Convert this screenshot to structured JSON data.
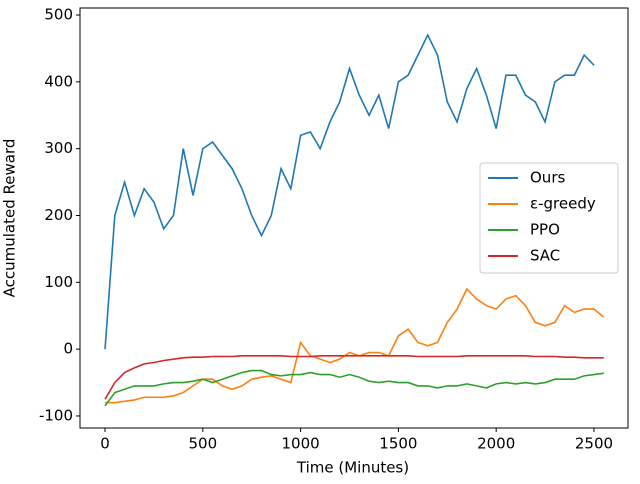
{
  "chart_data": {
    "type": "line",
    "xlabel": "Time (Minutes)",
    "ylabel": "Accumulated Reward",
    "x": [
      0,
      50,
      100,
      150,
      200,
      250,
      300,
      350,
      400,
      450,
      500,
      550,
      600,
      650,
      700,
      750,
      800,
      850,
      900,
      950,
      1000,
      1050,
      1100,
      1150,
      1200,
      1250,
      1300,
      1350,
      1400,
      1450,
      1500,
      1550,
      1600,
      1650,
      1700,
      1750,
      1800,
      1850,
      1900,
      1950,
      2000,
      2050,
      2100,
      2150,
      2200,
      2250,
      2300,
      2350,
      2400,
      2450,
      2500,
      2550
    ],
    "series": [
      {
        "name": "Ours",
        "color": "#1f77b4",
        "values": [
          0,
          200,
          250,
          200,
          240,
          220,
          180,
          200,
          300,
          230,
          300,
          310,
          290,
          270,
          240,
          200,
          170,
          200,
          270,
          240,
          320,
          325,
          300,
          340,
          370,
          420,
          380,
          350,
          380,
          330,
          400,
          410,
          440,
          470,
          440,
          370,
          340,
          390,
          420,
          380,
          330,
          410,
          410,
          380,
          370,
          340,
          400,
          410,
          410,
          440,
          425,
          null
        ]
      },
      {
        "name": "ε-greedy",
        "color": "#ff7f0e",
        "values": [
          -80,
          -80,
          -78,
          -76,
          -72,
          -72,
          -72,
          -70,
          -65,
          -55,
          -45,
          -45,
          -55,
          -60,
          -55,
          -45,
          -42,
          -40,
          -45,
          -50,
          10,
          -10,
          -15,
          -20,
          -15,
          -5,
          -10,
          -5,
          -5,
          -10,
          20,
          30,
          10,
          5,
          10,
          40,
          60,
          90,
          75,
          65,
          60,
          75,
          80,
          65,
          40,
          35,
          40,
          65,
          55,
          60,
          60,
          48
        ]
      },
      {
        "name": "PPO",
        "color": "#2ca02c",
        "values": [
          -85,
          -65,
          -60,
          -55,
          -55,
          -55,
          -52,
          -50,
          -50,
          -48,
          -45,
          -50,
          -45,
          -40,
          -35,
          -32,
          -32,
          -38,
          -40,
          -38,
          -38,
          -35,
          -38,
          -38,
          -42,
          -38,
          -42,
          -48,
          -50,
          -48,
          -50,
          -50,
          -55,
          -55,
          -58,
          -55,
          -55,
          -52,
          -55,
          -58,
          -52,
          -50,
          -52,
          -50,
          -52,
          -50,
          -45,
          -45,
          -45,
          -40,
          -38,
          -36
        ]
      },
      {
        "name": "SAC",
        "color": "#d62728",
        "values": [
          -75,
          -50,
          -35,
          -28,
          -22,
          -20,
          -17,
          -15,
          -13,
          -12,
          -12,
          -11,
          -11,
          -11,
          -10,
          -10,
          -10,
          -10,
          -10,
          -11,
          -11,
          -11,
          -10,
          -10,
          -10,
          -10,
          -10,
          -10,
          -10,
          -10,
          -10,
          -10,
          -11,
          -11,
          -11,
          -11,
          -11,
          -10,
          -10,
          -10,
          -10,
          -10,
          -10,
          -10,
          -11,
          -11,
          -11,
          -12,
          -12,
          -13,
          -13,
          -13
        ]
      }
    ],
    "xlim": [
      -128,
      2674
    ],
    "ylim": [
      -118,
      510.5
    ],
    "xticks": [
      0,
      500,
      1000,
      1500,
      2000,
      2500
    ],
    "yticks": [
      -100,
      0,
      100,
      200,
      300,
      400,
      500
    ],
    "legend": "center right",
    "grid": false
  }
}
